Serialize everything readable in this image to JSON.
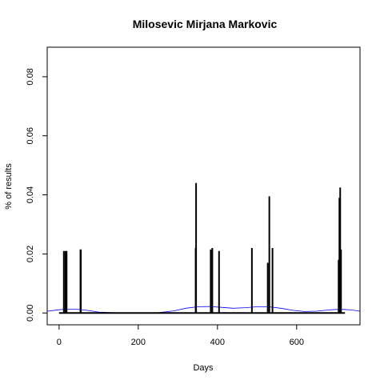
{
  "chart_data": {
    "type": "bar",
    "title": "Milosevic Mirjana Markovic",
    "xlabel": "Days",
    "ylabel": "% of results",
    "xlim": [
      -30,
      760
    ],
    "ylim": [
      -0.004,
      0.09
    ],
    "xticks": [
      0,
      200,
      400,
      600
    ],
    "yticks": [
      0.0,
      0.02,
      0.04,
      0.06,
      0.08
    ],
    "ytick_labels": [
      "0.00",
      "0.02",
      "0.04",
      "0.06",
      "0.08"
    ],
    "grid": false,
    "legend": "none",
    "bars": [
      {
        "x": 12,
        "value": 0.021
      },
      {
        "x": 16,
        "value": 0.021
      },
      {
        "x": 19,
        "value": 0.021
      },
      {
        "x": 54,
        "value": 0.0215
      },
      {
        "x": 55,
        "value": 0.0215
      },
      {
        "x": 345,
        "value": 0.022
      },
      {
        "x": 346,
        "value": 0.044
      },
      {
        "x": 383,
        "value": 0.0215
      },
      {
        "x": 387,
        "value": 0.022
      },
      {
        "x": 404,
        "value": 0.021
      },
      {
        "x": 487,
        "value": 0.022
      },
      {
        "x": 527,
        "value": 0.017
      },
      {
        "x": 531,
        "value": 0.0395
      },
      {
        "x": 539,
        "value": 0.022
      },
      {
        "x": 706,
        "value": 0.018
      },
      {
        "x": 708,
        "value": 0.039
      },
      {
        "x": 710,
        "value": 0.0425
      },
      {
        "x": 712,
        "value": 0.0215
      }
    ],
    "baseline": {
      "x_start": 0,
      "x_end": 722,
      "value": 0.0,
      "color": "#000000"
    },
    "series": [
      {
        "type": "line",
        "color": "#0000ff",
        "x": [
          -30,
          0,
          20,
          40,
          70,
          100,
          150,
          200,
          250,
          290,
          320,
          350,
          380,
          410,
          440,
          470,
          500,
          530,
          560,
          590,
          620,
          650,
          680,
          700,
          720,
          740,
          760
        ],
        "y": [
          0.0006,
          0.0011,
          0.0013,
          0.0013,
          0.0009,
          0.0003,
          0.0,
          0.0,
          0.0001,
          0.0007,
          0.0016,
          0.0021,
          0.0022,
          0.0019,
          0.0016,
          0.0018,
          0.0021,
          0.0021,
          0.0016,
          0.0009,
          0.0005,
          0.0006,
          0.001,
          0.0012,
          0.0012,
          0.001,
          0.0006
        ]
      }
    ]
  }
}
